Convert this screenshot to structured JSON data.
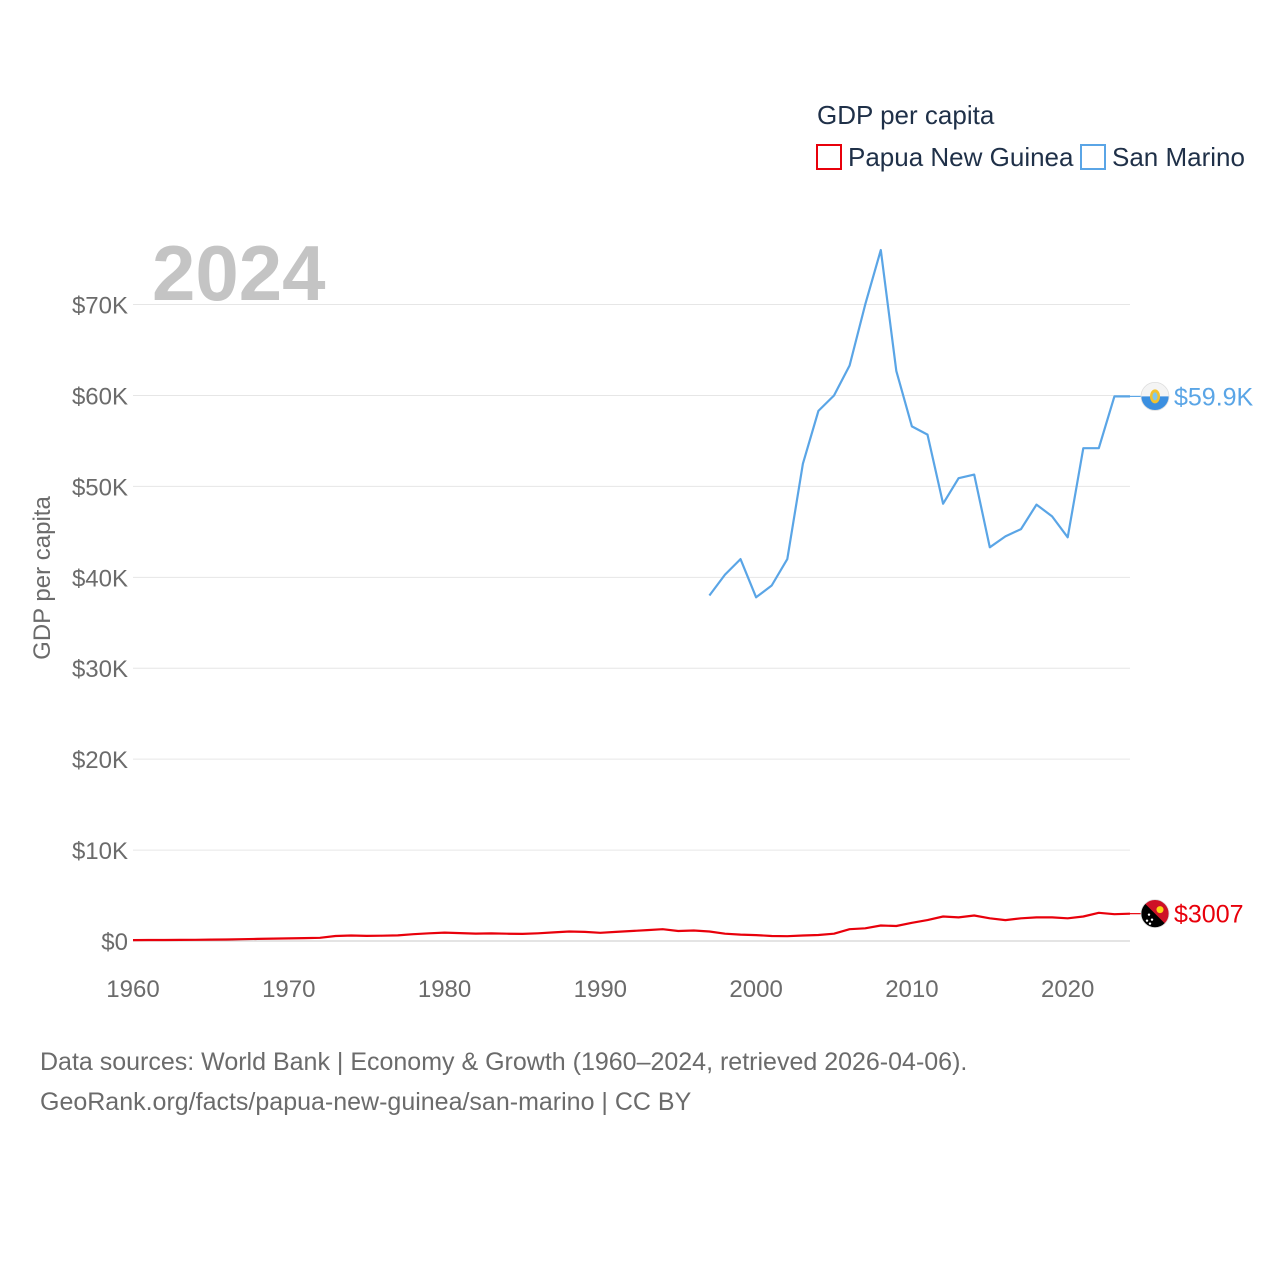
{
  "chart_data": {
    "type": "line",
    "title": "GDP per capita",
    "year_label": "2024",
    "ylabel": "GDP per capita",
    "xlabel": "",
    "xlim": [
      1960,
      2024
    ],
    "ylim": [
      0,
      76000
    ],
    "x_ticks": [
      1960,
      1970,
      1980,
      1990,
      2000,
      2010,
      2020
    ],
    "x_tick_labels": [
      "1960",
      "1970",
      "1980",
      "1990",
      "2000",
      "2010",
      "2020"
    ],
    "y_ticks": [
      0,
      10000,
      20000,
      30000,
      40000,
      50000,
      60000,
      70000
    ],
    "y_tick_labels": [
      "$0",
      "$10K",
      "$20K",
      "$30K",
      "$40K",
      "$50K",
      "$60K",
      "$70K"
    ],
    "grid": true,
    "legend_position": "top-right",
    "series": [
      {
        "name": "Papua New Guinea",
        "color": "#e8000b",
        "end_label": "$3007",
        "flag_icon": "papua-new-guinea-flag-icon",
        "x": [
          1960,
          1961,
          1962,
          1963,
          1964,
          1965,
          1966,
          1967,
          1968,
          1969,
          1970,
          1971,
          1972,
          1973,
          1974,
          1975,
          1976,
          1977,
          1978,
          1979,
          1980,
          1981,
          1982,
          1983,
          1984,
          1985,
          1986,
          1987,
          1988,
          1989,
          1990,
          1991,
          1992,
          1993,
          1994,
          1995,
          1996,
          1997,
          1998,
          1999,
          2000,
          2001,
          2002,
          2003,
          2004,
          2005,
          2006,
          2007,
          2008,
          2009,
          2010,
          2011,
          2012,
          2013,
          2014,
          2015,
          2016,
          2017,
          2018,
          2019,
          2020,
          2021,
          2022,
          2023,
          2024
        ],
        "values": [
          100,
          105,
          110,
          120,
          130,
          150,
          170,
          200,
          230,
          260,
          290,
          320,
          350,
          550,
          600,
          560,
          580,
          620,
          750,
          850,
          920,
          870,
          810,
          840,
          800,
          780,
          850,
          950,
          1050,
          1000,
          900,
          1000,
          1100,
          1200,
          1300,
          1100,
          1150,
          1050,
          800,
          700,
          650,
          550,
          530,
          600,
          660,
          800,
          1300,
          1400,
          1700,
          1650,
          2000,
          2300,
          2700,
          2600,
          2800,
          2500,
          2300,
          2500,
          2600,
          2600,
          2500,
          2700,
          3100,
          2950,
          3007
        ]
      },
      {
        "name": "San Marino",
        "color": "#5aa5e6",
        "end_label": "$59.9K",
        "flag_icon": "san-marino-flag-icon",
        "x": [
          1997,
          1998,
          1999,
          2000,
          2001,
          2002,
          2003,
          2004,
          2005,
          2006,
          2007,
          2008,
          2009,
          2010,
          2011,
          2012,
          2013,
          2014,
          2015,
          2016,
          2017,
          2018,
          2019,
          2020,
          2021,
          2022,
          2023,
          2024
        ],
        "values": [
          38000,
          40300,
          42000,
          37800,
          39100,
          42000,
          52500,
          58300,
          60000,
          63300,
          70000,
          76000,
          62700,
          56600,
          55700,
          48100,
          50900,
          51300,
          43300,
          44500,
          45300,
          48000,
          46700,
          44400,
          54200,
          54200,
          59900,
          59900
        ]
      }
    ]
  },
  "footer": {
    "line1": "Data sources: World Bank | Economy & Growth (1960–2024, retrieved 2026-04-06).",
    "line2": "GeoRank.org/facts/papua-new-guinea/san-marino | CC BY"
  }
}
